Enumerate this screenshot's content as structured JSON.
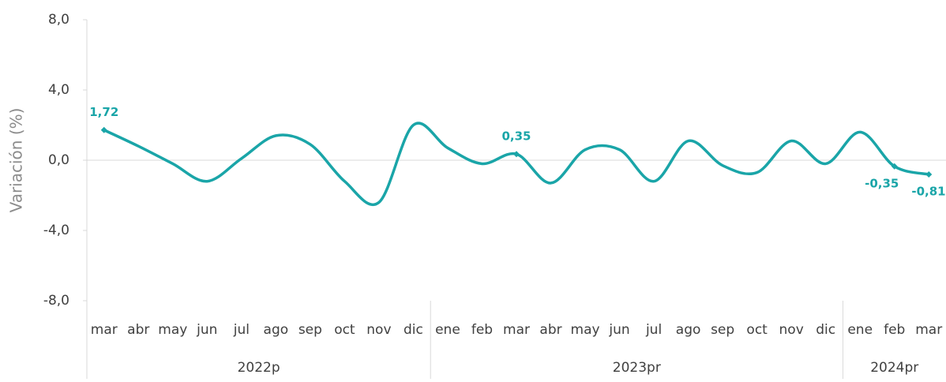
{
  "chart_data": {
    "type": "line",
    "y_label": "Variación (%)",
    "categories": [
      "mar",
      "abr",
      "may",
      "jun",
      "jul",
      "ago",
      "sep",
      "oct",
      "nov",
      "dic",
      "ene",
      "feb",
      "mar",
      "abr",
      "may",
      "jun",
      "jul",
      "ago",
      "sep",
      "oct",
      "nov",
      "dic",
      "ene",
      "feb",
      "mar"
    ],
    "category_groups": [
      {
        "label": "2022p",
        "span": 10
      },
      {
        "label": "2023pr",
        "span": 12
      },
      {
        "label": "2024pr",
        "span": 3
      }
    ],
    "series": [
      {
        "name": "Variación",
        "color": "#1aa5a8",
        "values": [
          1.72,
          0.8,
          -0.2,
          -1.2,
          0.1,
          1.4,
          0.9,
          -1.2,
          -2.4,
          2.0,
          0.7,
          -0.2,
          0.35,
          -1.3,
          0.6,
          0.6,
          -1.2,
          1.1,
          -0.3,
          -0.7,
          1.1,
          -0.2,
          1.6,
          -0.35,
          -0.81
        ],
        "value_labels": [
          "1,72",
          null,
          null,
          null,
          null,
          null,
          null,
          null,
          null,
          null,
          null,
          null,
          "0,35",
          null,
          null,
          null,
          null,
          null,
          null,
          null,
          null,
          null,
          null,
          "-0,35",
          "-0,81"
        ]
      }
    ],
    "ylim": [
      -8,
      8
    ],
    "yticks": [
      {
        "value": -8,
        "label": "-8,0"
      },
      {
        "value": -4,
        "label": "-4,0"
      },
      {
        "value": 0,
        "label": "0,0"
      },
      {
        "value": 4,
        "label": "4,0"
      },
      {
        "value": 8,
        "label": "8,0"
      }
    ]
  }
}
